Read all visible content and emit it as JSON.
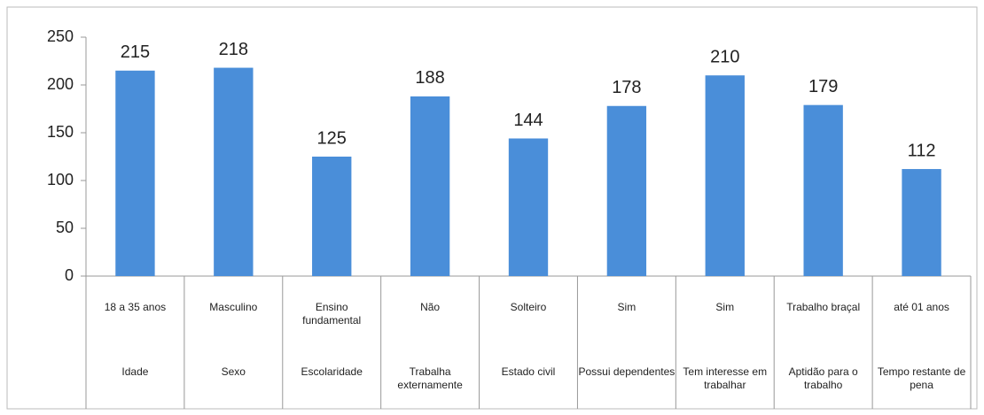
{
  "chart_data": {
    "type": "bar",
    "categories": [
      "18 a 35 anos",
      "Masculino",
      "Ensino fundamental",
      "Não",
      "Solteiro",
      "Sim",
      "Sim",
      "Trabalho braçal",
      "até 01 anos"
    ],
    "groups": [
      "Idade",
      "Sexo",
      "Escolaridade",
      "Trabalha externamente",
      "Estado civil",
      "Possui dependentes",
      "Tem interesse em trabalhar",
      "Aptidão para o trabalho",
      "Tempo restante de pena"
    ],
    "values": [
      215,
      218,
      125,
      188,
      144,
      178,
      210,
      179,
      112
    ],
    "color": "#4a8ed9",
    "ylim": [
      0,
      250
    ],
    "yticks": [
      0,
      50,
      100,
      150,
      200,
      250
    ],
    "grid": false
  }
}
